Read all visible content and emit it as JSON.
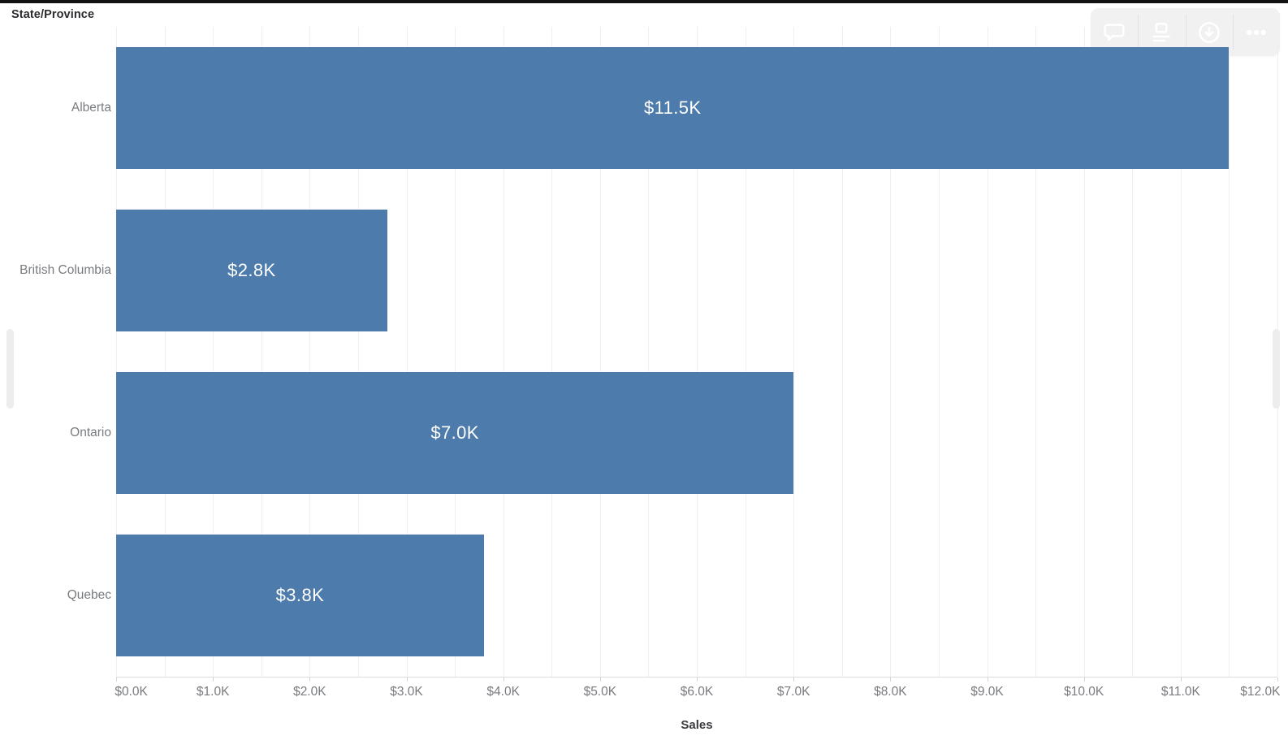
{
  "header": {
    "title": "State/Province"
  },
  "toolbar": {
    "background": "#f1f1f1",
    "icon_color": "#ffffff",
    "buttons": [
      {
        "label": "comment",
        "icon": "speech-bubble-icon"
      },
      {
        "label": "view-data",
        "icon": "data-summary-icon"
      },
      {
        "label": "download",
        "icon": "download-icon"
      },
      {
        "label": "more-options",
        "icon": "ellipsis-icon"
      }
    ]
  },
  "chart_data": {
    "type": "bar",
    "orientation": "horizontal",
    "row_header": "State/Province",
    "categories": [
      "Alberta",
      "British Columbia",
      "Ontario",
      "Quebec"
    ],
    "values": [
      11.5,
      2.8,
      7.0,
      3.8
    ],
    "bar_labels": [
      "$11.5K",
      "$2.8K",
      "$7.0K",
      "$3.8K"
    ],
    "xlabel": "Sales",
    "xlim": [
      0,
      12
    ],
    "x_tick_step": 1,
    "x_minor_grid_step": 0.5,
    "x_tick_labels": [
      "$0.0K",
      "$1.0K",
      "$2.0K",
      "$3.0K",
      "$4.0K",
      "$5.0K",
      "$6.0K",
      "$7.0K",
      "$8.0K",
      "$9.0K",
      "$10.0K",
      "$11.0K",
      "$12.0K"
    ],
    "grid": true,
    "legend": "none",
    "bar_color": "#4d7bab",
    "bar_label_color": "#ffffff",
    "axis_text_color": "#797b7f"
  },
  "scroll_indicators": {
    "left": true,
    "right": true
  }
}
